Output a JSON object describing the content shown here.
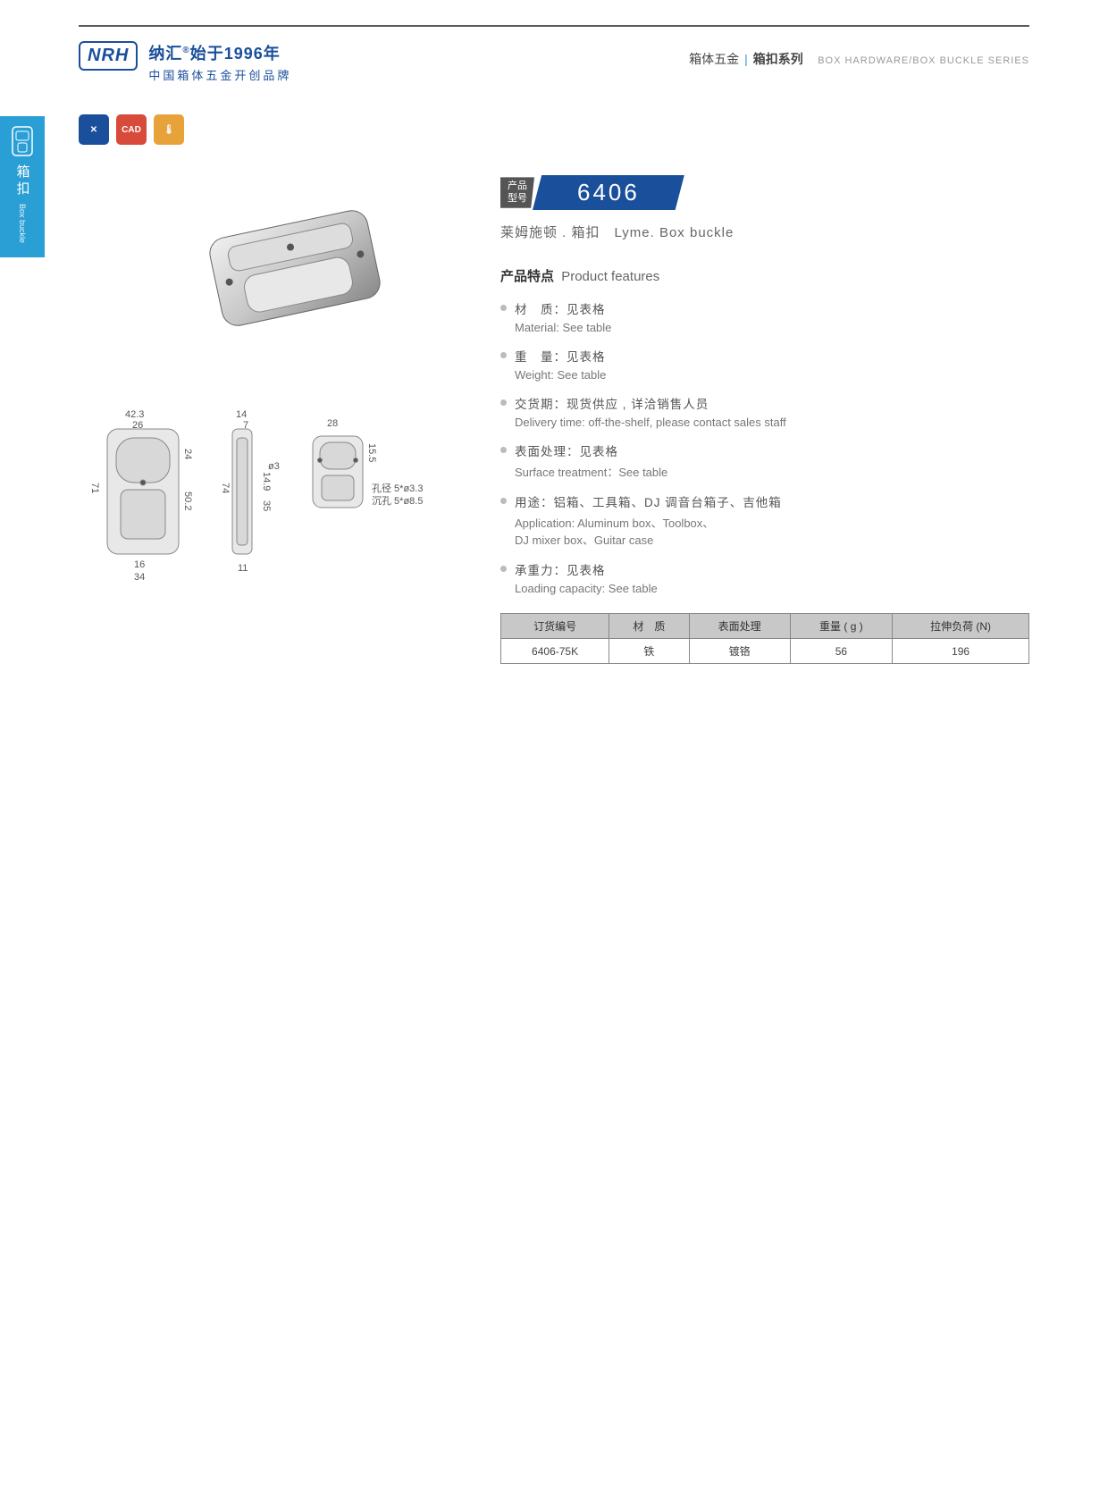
{
  "header": {
    "logo": "NRH",
    "brand_cn": "纳汇",
    "since": "始于1996年",
    "tagline": "中国箱体五金开创品牌",
    "cat_cn1": "箱体五金",
    "cat_cn2": "箱扣系列",
    "cat_en": "BOX HARDWARE/BOX BUCKLE SERIES"
  },
  "side": {
    "cn": "箱扣",
    "en": "Box buckle"
  },
  "badges": [
    "✕",
    "CAD",
    "🌡"
  ],
  "model": {
    "tag": "产品\n型号",
    "num": "6406"
  },
  "subtitle": "莱姆施顿 . 箱扣　Lyme. Box buckle",
  "features": {
    "title_cn": "产品特点",
    "title_en": "Product features",
    "items": [
      {
        "cn": "材　质：见表格",
        "en": "Material: See table"
      },
      {
        "cn": "重　量：见表格",
        "en": "Weight: See table"
      },
      {
        "cn": "交货期：现货供应 , 详洽销售人员",
        "en": "Delivery time: off-the-shelf, please contact sales staff"
      },
      {
        "cn": "表面处理：见表格",
        "en": "Surface treatment：See table"
      },
      {
        "cn": "用途：铝箱、工具箱、DJ 调音台箱子、吉他箱",
        "en": "Application: Aluminum box、Toolbox、\nDJ mixer box、Guitar case"
      },
      {
        "cn": "承重力：见表格",
        "en": "Loading capacity: See table"
      }
    ]
  },
  "table": {
    "headers": [
      "订货编号",
      "材　质",
      "表面处理",
      "重量 ( g )",
      "拉伸负荷 (N)"
    ],
    "rows": [
      [
        "6406-75K",
        "铁",
        "镀铬",
        "56",
        "196"
      ]
    ]
  },
  "dims": {
    "v1_w": "42.3",
    "v1_w2": "26",
    "v1_h": "71",
    "v1_h2": "50.2",
    "v1_h3": "24",
    "v1_bw": "16",
    "v1_bw2": "34",
    "v2_w": "14",
    "v2_w2": "7",
    "v2_h": "74",
    "v2_h2": "35",
    "v2_d": "ø3",
    "v2_bw": "11",
    "v2_h3": "14.9",
    "v3_w": "28",
    "v3_h": "15.5",
    "v3_note1": "孔径 5*ø3.3",
    "v3_note2": "沉孔 5*ø8.5"
  },
  "colors": {
    "brand": "#1a4f9c",
    "accent": "#2a9fd6",
    "badge2": "#d84a3a",
    "badge3": "#e8a23a",
    "th_bg": "#c8c8c8"
  }
}
